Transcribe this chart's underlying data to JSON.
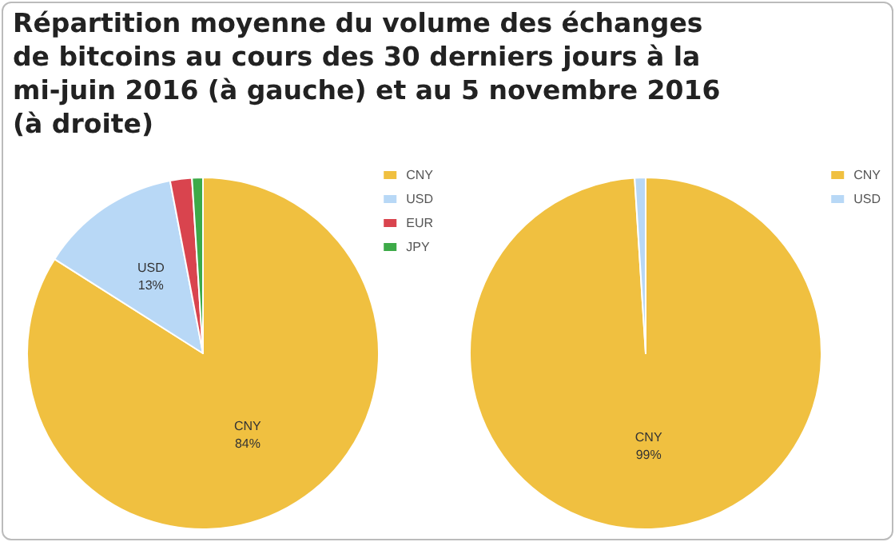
{
  "chart_data": [
    {
      "type": "pie",
      "title": "Répartition moyenne du volume des échanges de bitcoins au cours des 30 derniers jours à la mi-juin 2016 (à gauche) et au 5 novembre 2016 (à droite)",
      "categories": [
        "CNY",
        "USD",
        "EUR",
        "JPY"
      ],
      "values": [
        84,
        13,
        2,
        1
      ],
      "colors": [
        "#f0c040",
        "#b8d8f6",
        "#d9444e",
        "#3daa48"
      ],
      "value_labels": [
        "84%",
        "13%",
        null,
        null
      ],
      "legend": "top right"
    },
    {
      "type": "pie",
      "categories": [
        "CNY",
        "USD"
      ],
      "values": [
        99,
        1
      ],
      "colors": [
        "#f0c040",
        "#b8d8f6"
      ],
      "value_labels": [
        "99%",
        null
      ],
      "legend": "top right"
    }
  ]
}
